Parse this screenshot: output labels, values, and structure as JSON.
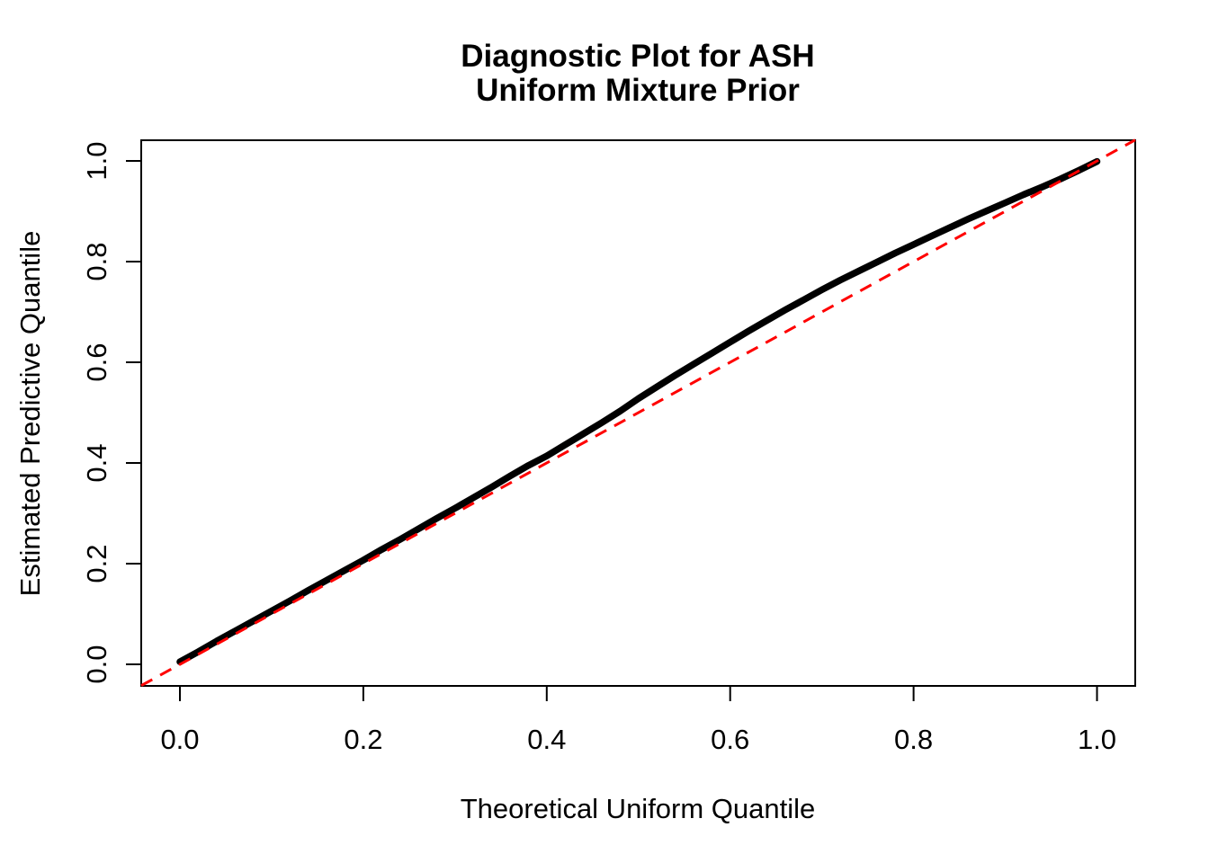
{
  "figure": {
    "background_color": "#FFFFFF",
    "curve_color": "#000000",
    "reference_color": "#FF0000"
  },
  "chart_data": {
    "type": "line",
    "title_line1": "Diagnostic Plot for ASH",
    "title_line2": "Uniform Mixture Prior",
    "xlabel": "Theoretical Uniform Quantile",
    "ylabel": "Estimated Predictive Quantile",
    "xlim": [
      0,
      1
    ],
    "ylim": [
      0,
      1
    ],
    "grid": false,
    "legend": "none",
    "x_ticks": [
      0.0,
      0.2,
      0.4,
      0.6,
      0.8,
      1.0
    ],
    "y_ticks": [
      0.0,
      0.2,
      0.4,
      0.6,
      0.8,
      1.0
    ],
    "x_tick_labels": [
      "0.0",
      "0.2",
      "0.4",
      "0.6",
      "0.8",
      "1.0"
    ],
    "y_tick_labels": [
      "0.0",
      "0.2",
      "0.4",
      "0.6",
      "0.8",
      "1.0"
    ],
    "series": [
      {
        "name": "estimated-predictive-quantiles",
        "type": "line",
        "color": "#000000",
        "line_width": "thick",
        "x": [
          0.0,
          0.02,
          0.04,
          0.06,
          0.08,
          0.1,
          0.12,
          0.14,
          0.16,
          0.18,
          0.2,
          0.22,
          0.24,
          0.26,
          0.28,
          0.3,
          0.32,
          0.34,
          0.36,
          0.38,
          0.4,
          0.42,
          0.44,
          0.46,
          0.48,
          0.5,
          0.52,
          0.54,
          0.56,
          0.58,
          0.6,
          0.62,
          0.64,
          0.66,
          0.68,
          0.7,
          0.72,
          0.74,
          0.76,
          0.78,
          0.8,
          0.82,
          0.84,
          0.86,
          0.88,
          0.9,
          0.92,
          0.94,
          0.96,
          0.98,
          1.0
        ],
        "y": [
          0.005,
          0.025,
          0.046,
          0.066,
          0.086,
          0.106,
          0.126,
          0.147,
          0.167,
          0.187,
          0.207,
          0.228,
          0.248,
          0.269,
          0.29,
          0.31,
          0.331,
          0.352,
          0.374,
          0.395,
          0.414,
          0.436,
          0.458,
          0.48,
          0.503,
          0.528,
          0.551,
          0.574,
          0.596,
          0.618,
          0.64,
          0.662,
          0.683,
          0.704,
          0.724,
          0.744,
          0.763,
          0.781,
          0.799,
          0.817,
          0.834,
          0.851,
          0.868,
          0.885,
          0.901,
          0.917,
          0.933,
          0.948,
          0.964,
          0.981,
          0.999
        ]
      }
    ],
    "reference_line": {
      "name": "identity-line",
      "intercept": 0,
      "slope": 1,
      "color": "#FF0000",
      "style": "dashed"
    }
  }
}
